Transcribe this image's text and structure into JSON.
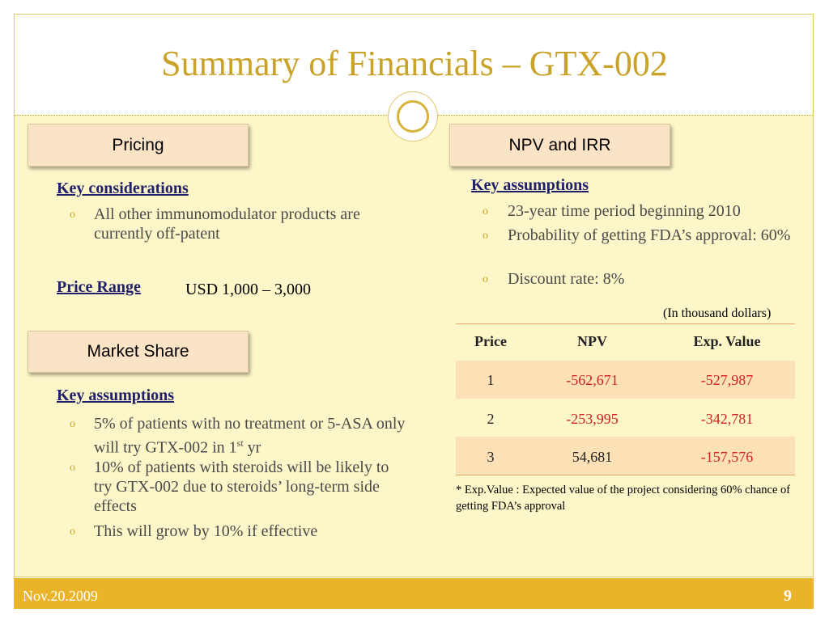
{
  "slide": {
    "title": "Summary of Financials – GTX-002",
    "footer_date": "Nov.20.2009",
    "page_number": "9"
  },
  "pricing": {
    "header": "Pricing",
    "considerations_heading": "Key considerations",
    "considerations": [
      "All other immunomodulator products are currently off-patent"
    ],
    "price_range_label": "Price Range",
    "price_range_value": "USD 1,000 – 3,000"
  },
  "market_share": {
    "header": "Market Share",
    "assumptions_heading": "Key assumptions",
    "bullet1_main": "5% of patients with no treatment or 5-ASA only will try GTX-002 in 1",
    "bullet1_sup": "st",
    "bullet1_end": " yr",
    "bullet2": "10% of patients with steroids will be likely to try GTX-002 due to steroids’ long-term side effects",
    "bullet3": "This will grow by 10% if effective"
  },
  "npv_irr": {
    "header": "NPV and IRR",
    "assumptions_heading": "Key assumptions",
    "assumptions": [
      "23-year time period beginning 2010",
      "Probability of getting FDA’s approval: 60%",
      "Discount rate: 8%"
    ],
    "table_unit": "(In thousand dollars)",
    "table": {
      "headers": [
        "Price",
        "NPV",
        "Exp. Value"
      ],
      "rows": [
        [
          "1",
          "-562,671",
          "-527,987"
        ],
        [
          "2",
          "-253,995",
          "-342,781"
        ],
        [
          "3",
          "54,681",
          "-157,576"
        ]
      ]
    },
    "footnote": "* Exp.Value : Expected value of the project considering 60% chance of getting FDA’s approval"
  },
  "colors": {
    "title_gold": "#c9a227",
    "panel_yellow": "#fdf6c8",
    "header_box": "#fbe3c6",
    "footer_gold": "#e9b42a",
    "negative_red": "#d42020",
    "heading_navy": "#1f1f6a"
  },
  "icons": {
    "bullet": "circle-bullet-icon",
    "divider": "ring-ornament-icon"
  }
}
